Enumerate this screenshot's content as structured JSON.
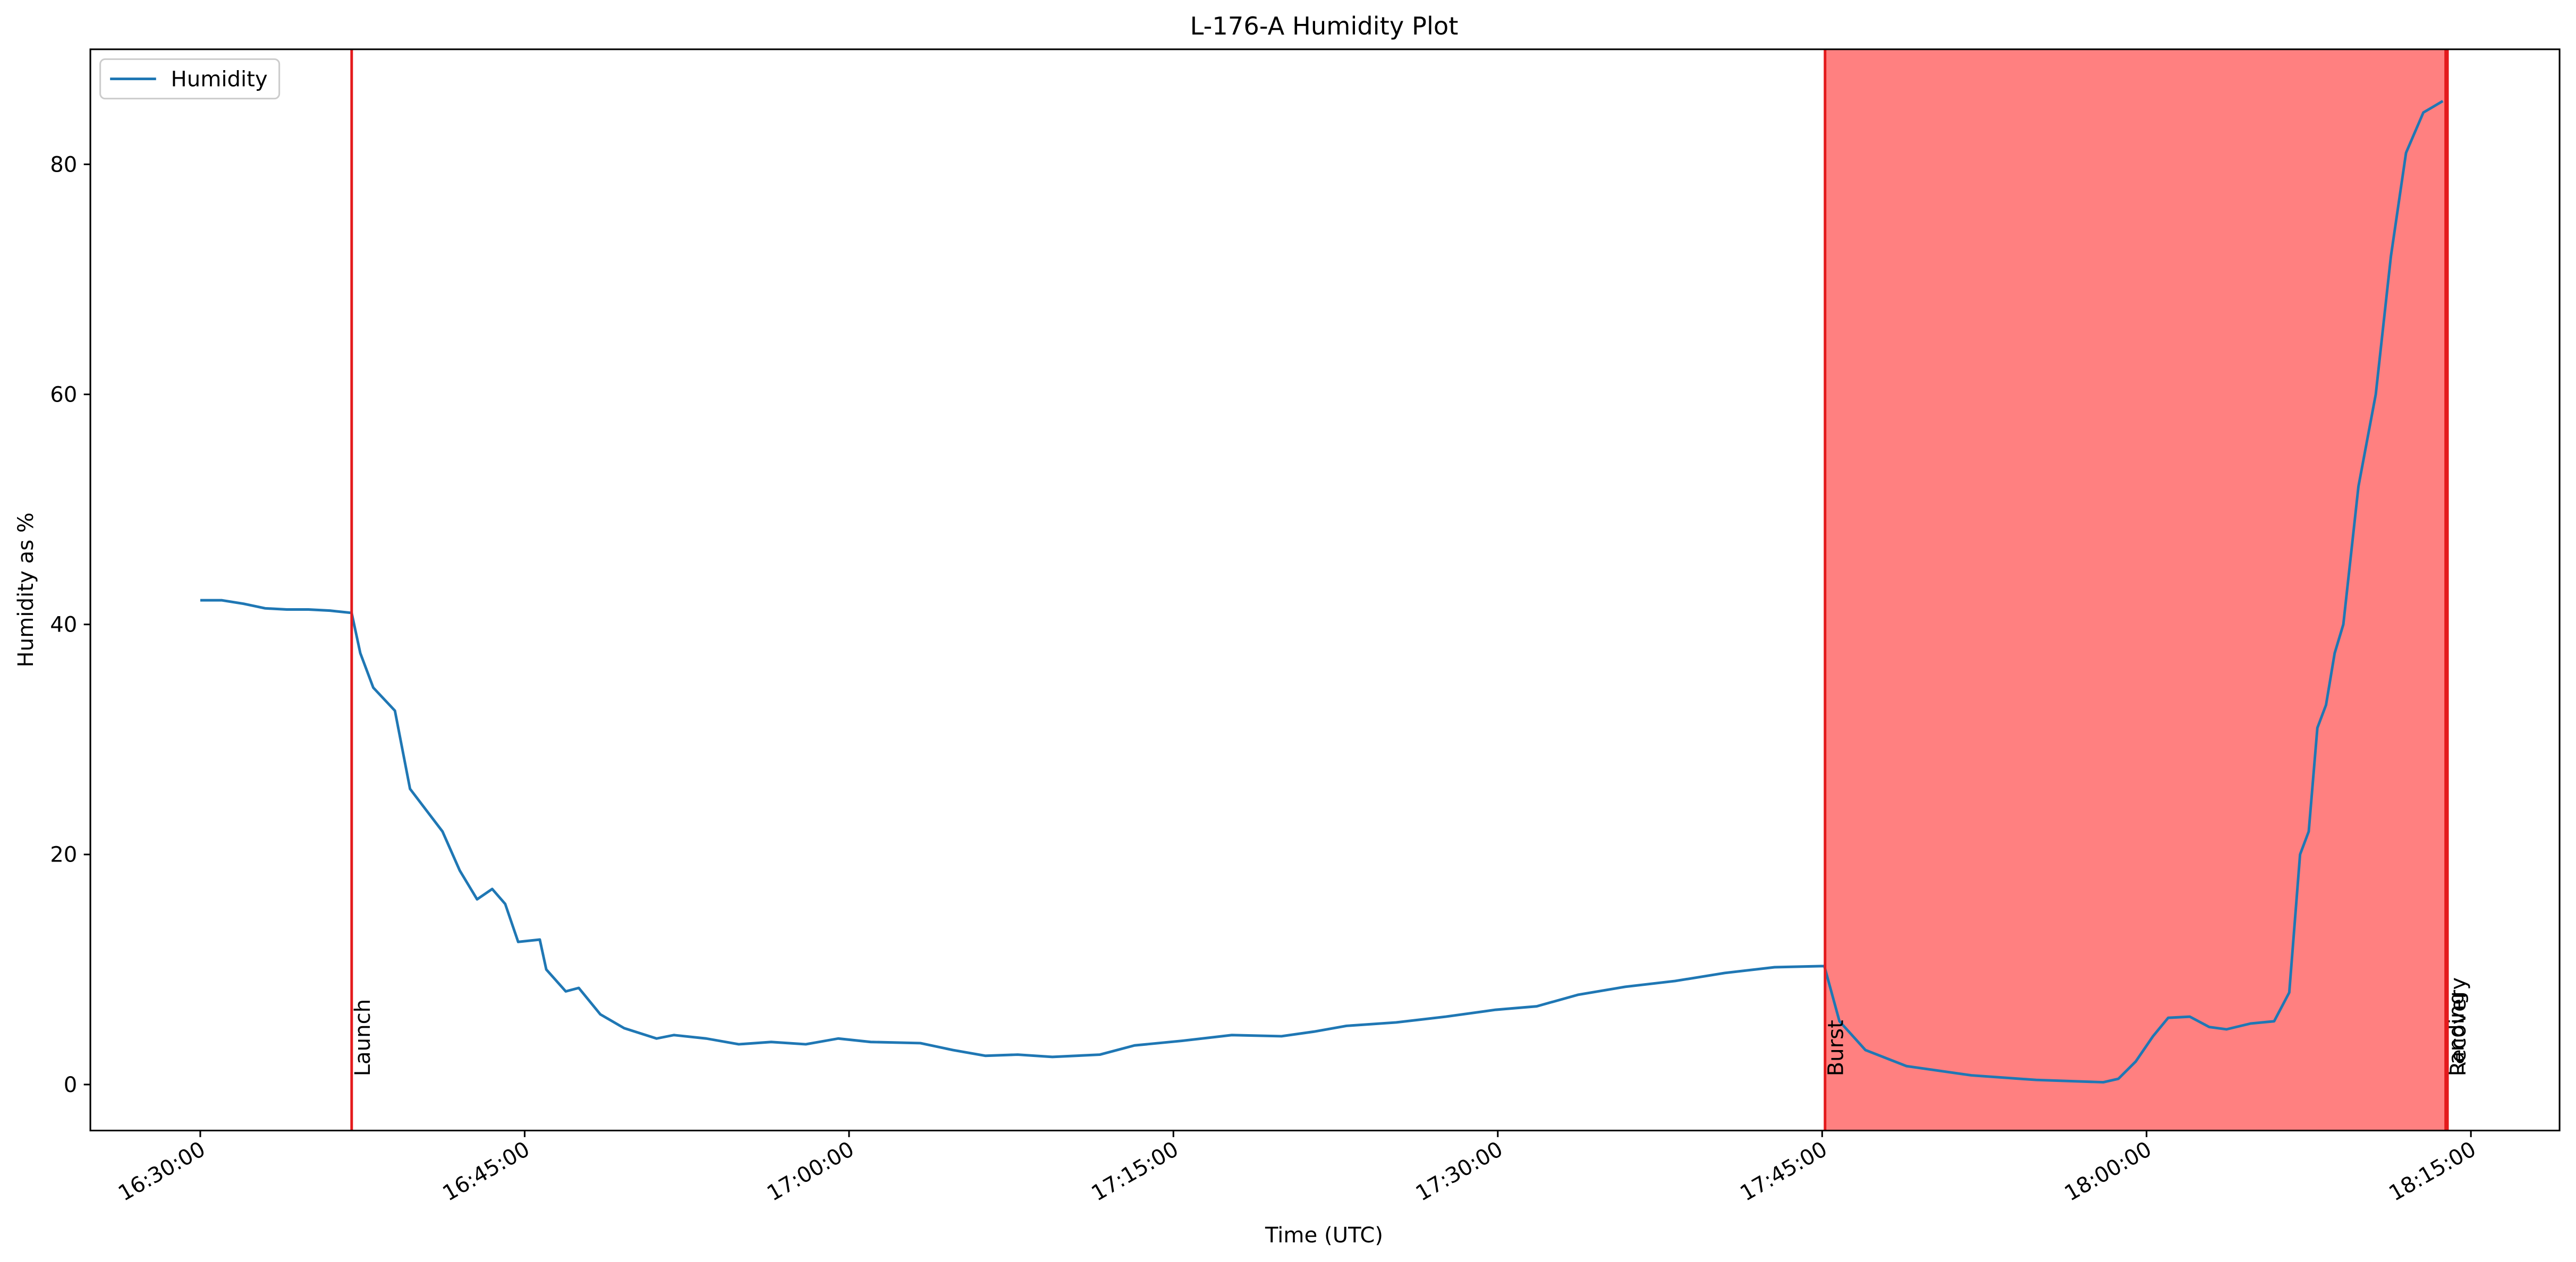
{
  "chart_data": {
    "type": "line",
    "title": "L-176-A Humidity Plot",
    "xlabel": "Time (UTC)",
    "ylabel": "Humidity as %",
    "legend": "upper left",
    "x": [
      "16:30:00",
      "16:31:00",
      "16:32:00",
      "16:33:00",
      "16:34:00",
      "16:35:00",
      "16:36:00",
      "16:37:00",
      "16:37:24",
      "16:38:00",
      "16:39:00",
      "16:39:42",
      "16:41:12",
      "16:42:00",
      "16:42:48",
      "16:43:30",
      "16:44:06",
      "16:44:42",
      "16:45:42",
      "16:46:00",
      "16:46:54",
      "16:47:30",
      "16:48:30",
      "16:49:36",
      "16:51:06",
      "16:51:54",
      "16:53:24",
      "16:54:54",
      "16:56:24",
      "16:58:00",
      "16:59:30",
      "17:01:00",
      "17:03:18",
      "17:04:48",
      "17:06:18",
      "17:07:48",
      "17:09:24",
      "17:11:36",
      "17:13:12",
      "17:15:24",
      "17:17:42",
      "17:20:00",
      "17:21:30",
      "17:23:00",
      "17:25:18",
      "17:27:36",
      "17:29:54",
      "17:31:48",
      "17:33:42",
      "17:35:54",
      "17:38:12",
      "17:40:30",
      "17:42:48",
      "17:45:06",
      "17:45:48",
      "17:47:00",
      "17:48:54",
      "17:51:54",
      "17:54:54",
      "17:58:00",
      "17:58:42",
      "17:59:30",
      "18:00:18",
      "18:01:00",
      "18:02:00",
      "18:02:54",
      "18:03:42",
      "18:04:48",
      "18:05:54",
      "18:06:36",
      "18:07:06",
      "18:07:30",
      "18:07:54",
      "18:08:18",
      "18:08:42",
      "18:09:06",
      "18:09:48",
      "18:10:36",
      "18:11:18",
      "18:12:00",
      "18:12:48",
      "18:13:42"
    ],
    "series": [
      {
        "name": "Humidity",
        "color": "#1f77b4",
        "values": [
          42.1,
          42.1,
          41.8,
          41.4,
          41.3,
          41.3,
          41.2,
          41.0,
          37.5,
          34.5,
          32.5,
          25.7,
          22,
          18.6,
          16.1,
          17,
          15.7,
          12.4,
          12.6,
          10,
          8.1,
          8.4,
          6.1,
          4.9,
          4.0,
          4.3,
          4.0,
          3.5,
          3.7,
          3.5,
          4.0,
          3.7,
          3.6,
          3.0,
          2.5,
          2.6,
          2.4,
          2.6,
          3.4,
          3.8,
          4.3,
          4.2,
          4.6,
          5.1,
          5.4,
          5.9,
          6.5,
          6.8,
          7.8,
          8.5,
          9.0,
          9.7,
          10.2,
          10.3,
          5.5,
          3.0,
          1.6,
          0.8,
          0.4,
          0.2,
          0.5,
          2,
          4.2,
          5.8,
          5.9,
          5.0,
          4.8,
          5.3,
          5.5,
          8,
          20,
          22,
          31,
          33,
          37.5,
          40,
          52,
          60,
          72,
          81,
          84.5,
          85.5
        ]
      }
    ],
    "events": [
      {
        "label": "Launch",
        "x": "16:37:00",
        "color": "#e41a1c"
      },
      {
        "label": "Burst",
        "x": "17:45:08",
        "color": "#e41a1c"
      },
      {
        "label": "Landing",
        "x": "18:13:50",
        "color": "#e41a1c"
      },
      {
        "label": "Recovery",
        "x": "18:13:55",
        "color": "#e41a1c"
      }
    ],
    "shade_color": "#ff8080",
    "xlim": [
      "16:24:55",
      "18:19:06"
    ],
    "xticks": [
      "16:30:00",
      "16:45:00",
      "17:00:00",
      "17:15:00",
      "17:30:00",
      "17:45:00",
      "18:00:00",
      "18:15:00"
    ],
    "ylim": [
      -4,
      90
    ],
    "yticks": [
      0,
      20,
      40,
      60,
      80
    ],
    "grid": false
  }
}
